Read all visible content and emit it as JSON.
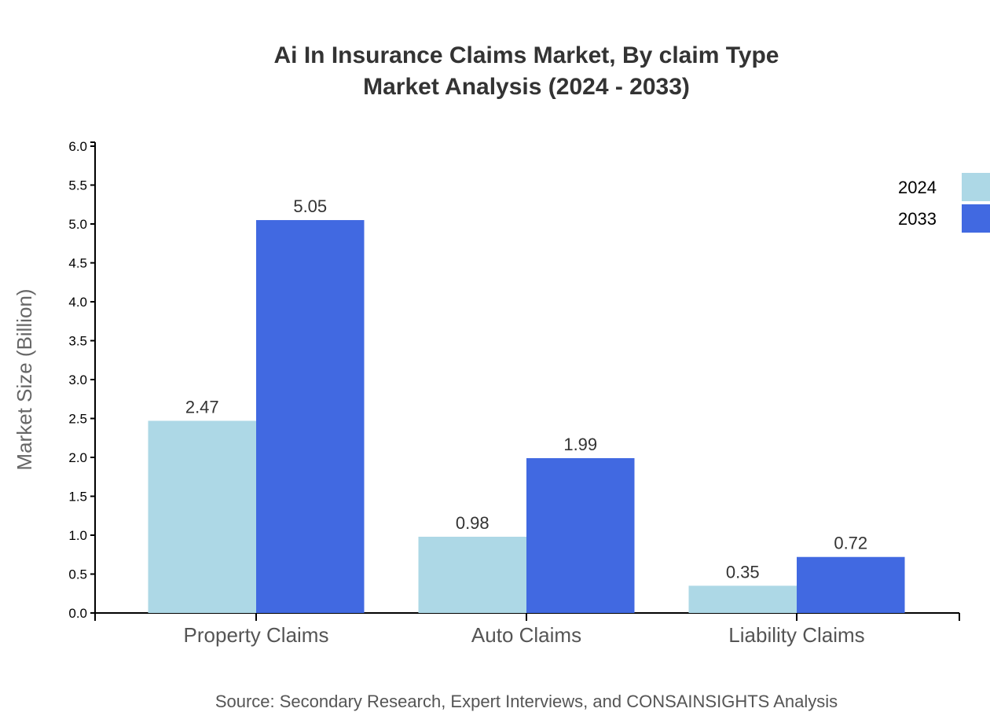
{
  "chart_data": {
    "type": "bar",
    "title": "Ai In Insurance Claims Market, By claim Type",
    "subtitle": "Market Analysis (2024 - 2033)",
    "xlabel": "",
    "ylabel": "Market Size (Billion)",
    "ylim": [
      0,
      6.0
    ],
    "yticks": [
      "0.0",
      "0.5",
      "1.0",
      "1.5",
      "2.0",
      "2.5",
      "3.0",
      "3.5",
      "4.0",
      "4.5",
      "5.0",
      "5.5",
      "6.0"
    ],
    "categories": [
      "Property Claims",
      "Auto Claims",
      "Liability Claims"
    ],
    "series": [
      {
        "name": "2024",
        "values": [
          2.47,
          0.98,
          0.35
        ],
        "labels": [
          "2.47",
          "0.98",
          "0.35"
        ],
        "color": "#add8e6"
      },
      {
        "name": "2033",
        "values": [
          5.05,
          1.99,
          0.72
        ],
        "labels": [
          "5.05",
          "1.99",
          "0.72"
        ],
        "color": "#4169e1"
      }
    ],
    "legend": "top-right",
    "grid": false,
    "source": "Source: Secondary Research, Expert Interviews, and CONSAINSIGHTS Analysis"
  }
}
